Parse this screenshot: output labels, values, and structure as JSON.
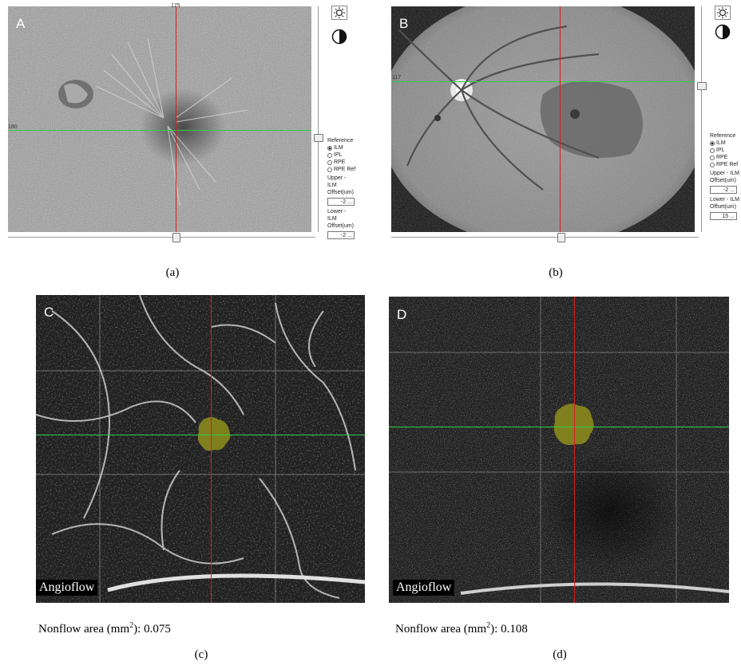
{
  "panels": {
    "a": {
      "letter": "A",
      "caption": "(a)",
      "top_marker": "175",
      "left_marker": "180",
      "reference_label": "Reference",
      "reference_options": [
        "ILM",
        "IPL",
        "RPE",
        "RPE Ref"
      ],
      "selected_reference": "ILM",
      "upper_label_1": "Upper - ILM",
      "upper_label_2": "Offset(um)",
      "upper_value": "-2",
      "lower_label_1": "Lower - ILM",
      "lower_label_2": "Offset(um)",
      "lower_value": "-2",
      "more_button": "...",
      "icons": [
        "brightness-icon",
        "contrast-icon"
      ]
    },
    "b": {
      "letter": "B",
      "caption": "(b)",
      "left_marker": "117",
      "reference_label": "Reference",
      "reference_options": [
        "ILM",
        "IPL",
        "RPE",
        "RPE Ref"
      ],
      "selected_reference": "ILM",
      "upper_label_1": "Upper - ILM",
      "upper_label_2": "Offset(um)",
      "upper_value": "-2",
      "lower_label_1": "Lower - ILM",
      "lower_label_2": "Offset(um)",
      "lower_value": "15",
      "more_button": "...",
      "icons": [
        "brightness-icon",
        "contrast-icon"
      ]
    },
    "c": {
      "letter": "C",
      "caption": "(c)",
      "tag": "Angioflow",
      "nonflow_prefix": "Nonflow area (mm",
      "nonflow_sup": "2",
      "nonflow_suffix": "): ",
      "nonflow_value": "0.075"
    },
    "d": {
      "letter": "D",
      "caption": "(d)",
      "tag": "Angioflow",
      "nonflow_prefix": "Nonflow area (mm",
      "nonflow_sup": "2",
      "nonflow_suffix": "): ",
      "nonflow_value": "0.108"
    }
  },
  "colors": {
    "horizontal_line": "#2fd04a",
    "vertical_line": "#d42020",
    "nonflow_overlay": "#8a8a1e"
  }
}
